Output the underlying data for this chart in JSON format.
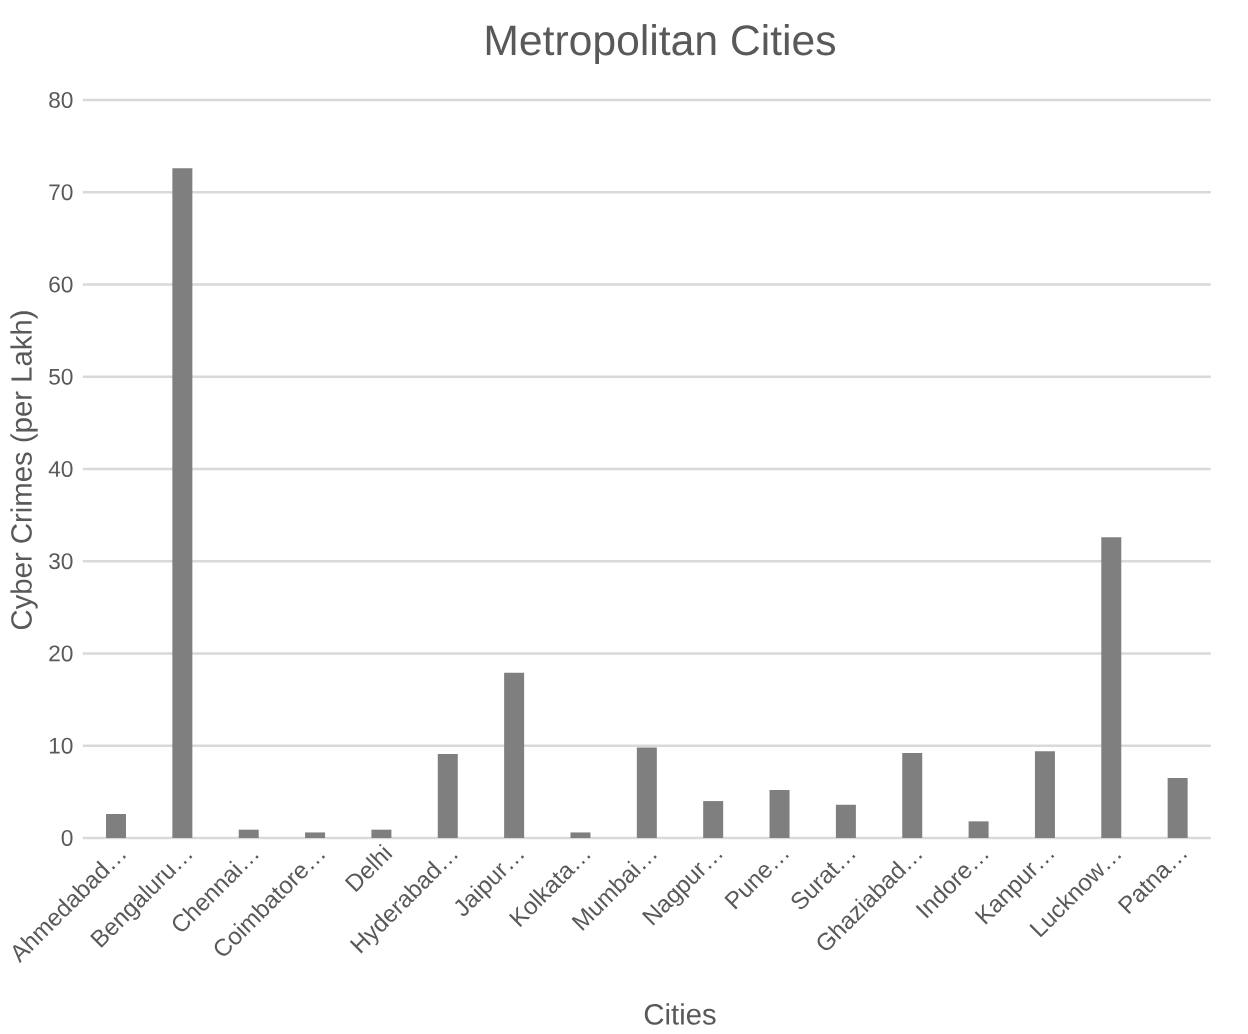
{
  "chart_data": {
    "type": "bar",
    "title": "Metropolitan Cities",
    "xlabel": "Cities",
    "ylabel": "Cyber Crimes (per Lakh)",
    "categories": [
      "Ahmedabad…",
      "Bengaluru…",
      "Chennai…",
      "Coimbatore…",
      "Delhi",
      "Hyderabad…",
      "Jaipur…",
      "Kolkata…",
      "Mumbai…",
      "Nagpur…",
      "Pune…",
      "Surat…",
      "Ghaziabad…",
      "Indore…",
      "Kanpur…",
      "Lucknow…",
      "Patna…"
    ],
    "values": [
      2.6,
      72.6,
      0.9,
      0.6,
      0.9,
      9.1,
      17.9,
      0.6,
      9.8,
      4.0,
      5.2,
      3.6,
      9.2,
      1.8,
      9.4,
      32.6,
      6.5
    ],
    "color": "#7f7f7f",
    "ylim": [
      0,
      80
    ],
    "yticks": [
      0,
      10,
      20,
      30,
      40,
      50,
      60,
      70,
      80
    ],
    "grid": "y"
  }
}
